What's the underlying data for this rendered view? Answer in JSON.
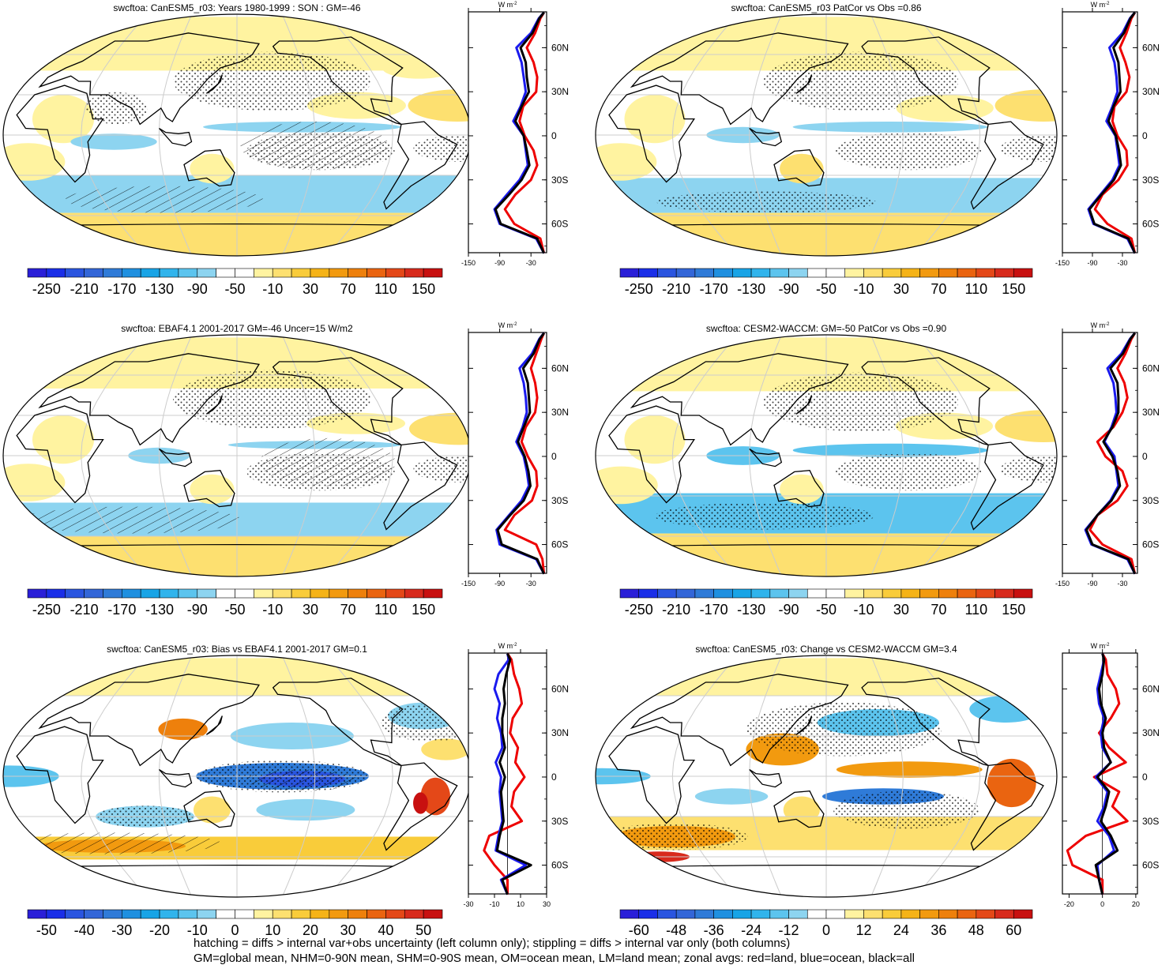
{
  "colorbar_colors": [
    "#2a1fd8",
    "#1a2ee8",
    "#2a55e0",
    "#3366d8",
    "#2f7bd8",
    "#1f90e0",
    "#18a4e6",
    "#30b4ec",
    "#5cc4ee",
    "#8dd4f0",
    "#ffffff",
    "#ffffff",
    "#fff3a0",
    "#fde070",
    "#f9cc3a",
    "#f5b317",
    "#f29a0f",
    "#ee800c",
    "#ea6410",
    "#e44818",
    "#d82a1c",
    "#c81010"
  ],
  "series_colors": {
    "land": "#ee0000",
    "ocean": "#1a1aee",
    "all": "#000000"
  },
  "footer": {
    "line1": "hatching = diffs > internal var+obs uncertainty (left column only); stippling = diffs > internal var only (both columns)",
    "line2": "GM=global mean, NHM=0-90N mean, SHM=0-90S mean, OM=ocean mean, LM=land mean; zonal avgs: red=land, blue=ocean, black=all"
  },
  "chart_data": [
    {
      "type": "map+zonal-line",
      "title": "swcftoa: CanESM5_r03: Years 1980-1999 : SON : GM=-46",
      "colorbar": {
        "labels": [
          "-250",
          "-210",
          "-170",
          "-130",
          "-90",
          "-50",
          "-10",
          "30",
          "70",
          "110",
          "150"
        ]
      },
      "zonal": {
        "units": "W m",
        "units_sup": "-2",
        "x_range": [
          -150,
          0
        ],
        "x_ticks": [
          -150,
          -90,
          -30
        ],
        "x_tick_labels": [
          "-150",
          "-90",
          "-30"
        ],
        "lat_ticks": [
          60,
          30,
          0,
          -30,
          -60
        ],
        "lat_tick_labels": [
          "60N",
          "30N",
          "0",
          "30S",
          "60S"
        ],
        "lat": [
          84,
          80,
          70,
          60,
          50,
          40,
          30,
          20,
          10,
          0,
          -10,
          -20,
          -30,
          -40,
          -50,
          -60,
          -70,
          -80
        ],
        "series": [
          {
            "name": "land",
            "values": [
              -5,
              -12,
              -22,
              -38,
              -25,
              -18,
              -20,
              -45,
              -52,
              -42,
              -25,
              -18,
              -30,
              -60,
              -80,
              -62,
              -12,
              -5
            ]
          },
          {
            "name": "ocean",
            "values": [
              -5,
              -15,
              -30,
              -58,
              -48,
              -44,
              -40,
              -50,
              -64,
              -44,
              -40,
              -36,
              -52,
              -76,
              -100,
              -90,
              -20,
              -5
            ]
          },
          {
            "name": "all",
            "values": [
              -5,
              -14,
              -27,
              -50,
              -40,
              -38,
              -34,
              -48,
              -60,
              -44,
              -38,
              -33,
              -48,
              -72,
              -98,
              -88,
              -18,
              -5
            ]
          }
        ]
      }
    },
    {
      "type": "map+zonal-line",
      "title": "swcftoa: CanESM5_r03 PatCor vs Obs =0.86",
      "colorbar": {
        "labels": [
          "-250",
          "-210",
          "-170",
          "-130",
          "-90",
          "-50",
          "-10",
          "30",
          "70",
          "110",
          "150"
        ]
      },
      "zonal": {
        "units": "W m",
        "units_sup": "-2",
        "x_range": [
          -150,
          0
        ],
        "x_ticks": [
          -150,
          -90,
          -30
        ],
        "x_tick_labels": [
          "-150",
          "-90",
          "-30"
        ],
        "lat_ticks": [
          60,
          30,
          0,
          -30,
          -60
        ],
        "lat_tick_labels": [
          "60N",
          "30N",
          "0",
          "30S",
          "60S"
        ],
        "lat": [
          84,
          80,
          70,
          60,
          50,
          40,
          30,
          20,
          10,
          0,
          -10,
          -20,
          -30,
          -40,
          -50,
          -60,
          -70,
          -80
        ],
        "series": [
          {
            "name": "land",
            "values": [
              -5,
              -12,
              -22,
              -35,
              -24,
              -16,
              -22,
              -46,
              -50,
              -40,
              -22,
              -20,
              -38,
              -70,
              -85,
              -60,
              -12,
              -5
            ]
          },
          {
            "name": "ocean",
            "values": [
              -5,
              -15,
              -30,
              -56,
              -46,
              -42,
              -40,
              -50,
              -62,
              -44,
              -40,
              -36,
              -50,
              -74,
              -98,
              -88,
              -20,
              -5
            ]
          },
          {
            "name": "all",
            "values": [
              -5,
              -14,
              -27,
              -48,
              -38,
              -36,
              -34,
              -48,
              -58,
              -43,
              -37,
              -33,
              -47,
              -72,
              -96,
              -86,
              -18,
              -5
            ]
          }
        ]
      }
    },
    {
      "type": "map+zonal-line",
      "title": "swcftoa: EBAF4.1 2001-2017 GM=-46 Uncer=15 W/m2",
      "colorbar": {
        "labels": [
          "-250",
          "-210",
          "-170",
          "-130",
          "-90",
          "-50",
          "-10",
          "30",
          "70",
          "110",
          "150"
        ]
      },
      "zonal": {
        "units": "W m",
        "units_sup": "-2",
        "x_range": [
          -150,
          0
        ],
        "x_ticks": [
          -150,
          -90,
          -30
        ],
        "x_tick_labels": [
          "-150",
          "-90",
          "-30"
        ],
        "lat_ticks": [
          60,
          30,
          0,
          -30,
          -60
        ],
        "lat_tick_labels": [
          "60N",
          "30N",
          "0",
          "30S",
          "60S"
        ],
        "lat": [
          84,
          80,
          70,
          60,
          50,
          40,
          30,
          20,
          10,
          0,
          -10,
          -20,
          -30,
          -40,
          -50,
          -60,
          -70,
          -80
        ],
        "series": [
          {
            "name": "land",
            "values": [
              -5,
              -10,
              -20,
              -30,
              -22,
              -18,
              -22,
              -40,
              -48,
              -36,
              -20,
              -18,
              -28,
              -62,
              -80,
              -20,
              -8,
              -5
            ]
          },
          {
            "name": "ocean",
            "values": [
              -5,
              -14,
              -28,
              -52,
              -44,
              -40,
              -38,
              -46,
              -58,
              -44,
              -38,
              -34,
              -48,
              -72,
              -96,
              -90,
              -20,
              -5
            ]
          },
          {
            "name": "all",
            "values": [
              -5,
              -13,
              -25,
              -45,
              -36,
              -34,
              -32,
              -44,
              -55,
              -42,
              -35,
              -31,
              -44,
              -70,
              -94,
              -86,
              -18,
              -5
            ]
          }
        ]
      }
    },
    {
      "type": "map+zonal-line",
      "title": "swcftoa: CESM2-WACCM: GM=-50 PatCor vs Obs =0.90",
      "colorbar": {
        "labels": [
          "-250",
          "-210",
          "-170",
          "-130",
          "-90",
          "-50",
          "-10",
          "30",
          "70",
          "110",
          "150"
        ]
      },
      "zonal": {
        "units": "W m",
        "units_sup": "-2",
        "x_range": [
          -150,
          0
        ],
        "x_ticks": [
          -150,
          -90,
          -30
        ],
        "x_tick_labels": [
          "-150",
          "-90",
          "-30"
        ],
        "lat_ticks": [
          60,
          30,
          0,
          -30,
          -60
        ],
        "lat_tick_labels": [
          "60N",
          "30N",
          "0",
          "30S",
          "60S"
        ],
        "lat": [
          84,
          80,
          70,
          60,
          50,
          40,
          30,
          20,
          10,
          0,
          -10,
          -20,
          -30,
          -40,
          -50,
          -60,
          -70,
          -80
        ],
        "series": [
          {
            "name": "land",
            "values": [
              -5,
              -12,
              -24,
              -40,
              -26,
              -20,
              -30,
              -48,
              -80,
              -64,
              -30,
              -20,
              -40,
              -80,
              -95,
              -70,
              -12,
              -5
            ]
          },
          {
            "name": "ocean",
            "values": [
              -5,
              -15,
              -32,
              -60,
              -48,
              -44,
              -42,
              -52,
              -66,
              -46,
              -42,
              -38,
              -54,
              -80,
              -104,
              -92,
              -20,
              -5
            ]
          },
          {
            "name": "all",
            "values": [
              -5,
              -14,
              -29,
              -54,
              -40,
              -38,
              -38,
              -50,
              -68,
              -50,
              -40,
              -35,
              -52,
              -80,
              -102,
              -90,
              -18,
              -5
            ]
          }
        ]
      }
    },
    {
      "type": "map+zonal-line",
      "title": "swcftoa: CanESM5_r03: Bias vs EBAF4.1 2001-2017  GM=0.1",
      "colorbar": {
        "labels": [
          "-50",
          "-40",
          "-30",
          "-20",
          "-10",
          "0",
          "10",
          "20",
          "30",
          "40",
          "50"
        ]
      },
      "zonal": {
        "units": "W m",
        "units_sup": "-2",
        "x_range": [
          -30,
          30
        ],
        "x_ticks": [
          -30,
          -10,
          10,
          30
        ],
        "x_tick_labels": [
          "-30",
          "-10",
          "10",
          "30"
        ],
        "zero_line": true,
        "lat_ticks": [
          60,
          30,
          0,
          -30,
          -60
        ],
        "lat_tick_labels": [
          "60N",
          "30N",
          "0",
          "30S",
          "60S"
        ],
        "lat": [
          84,
          80,
          70,
          60,
          50,
          40,
          30,
          20,
          10,
          0,
          -10,
          -20,
          -30,
          -40,
          -50,
          -60,
          -70,
          -80
        ],
        "series": [
          {
            "name": "land",
            "values": [
              0,
              3,
              5,
              9,
              11,
              4,
              2,
              8,
              6,
              13,
              5,
              3,
              11,
              -14,
              -18,
              -10,
              0,
              0
            ]
          },
          {
            "name": "ocean",
            "values": [
              0,
              1,
              -7,
              -10,
              -6,
              -8,
              -5,
              -4,
              -9,
              -5,
              -6,
              -5,
              -4,
              -7,
              -9,
              14,
              -5,
              0
            ]
          },
          {
            "name": "all",
            "values": [
              0,
              2,
              -1,
              -3,
              -2,
              -4,
              -4,
              -2,
              -6,
              -2,
              -5,
              -4,
              -3,
              -6,
              -8,
              18,
              -4,
              0
            ]
          }
        ]
      }
    },
    {
      "type": "map+zonal-line",
      "title": "swcftoa: CanESM5_r03: Change vs CESM2-WACCM GM=3.4",
      "colorbar": {
        "labels": [
          "-60",
          "-48",
          "-36",
          "-24",
          "-12",
          "0",
          "12",
          "24",
          "36",
          "48",
          "60"
        ]
      },
      "zonal": {
        "units": "W m",
        "units_sup": "-2",
        "x_range": [
          -24,
          21
        ],
        "x_ticks": [
          -20,
          0,
          20
        ],
        "x_tick_labels": [
          "-20",
          "0",
          "20"
        ],
        "zero_line": true,
        "lat_ticks": [
          60,
          30,
          0,
          -30,
          -60
        ],
        "lat_tick_labels": [
          "60N",
          "30N",
          "0",
          "30S",
          "60S"
        ],
        "lat": [
          84,
          80,
          70,
          60,
          50,
          40,
          30,
          20,
          10,
          0,
          -10,
          -20,
          -30,
          -40,
          -50,
          -60,
          -70,
          -80
        ],
        "series": [
          {
            "name": "land",
            "values": [
              0,
              2,
              3,
              8,
              10,
              5,
              -2,
              4,
              14,
              -5,
              10,
              6,
              15,
              -10,
              -21,
              -18,
              0,
              0
            ]
          },
          {
            "name": "ocean",
            "values": [
              0,
              1,
              -1,
              -3,
              -2,
              1,
              -1,
              0,
              5,
              -4,
              3,
              1,
              -3,
              4,
              7,
              -3,
              -2,
              0
            ]
          },
          {
            "name": "all",
            "values": [
              0,
              1,
              0,
              -2,
              -1,
              2,
              0,
              1,
              5,
              -3,
              4,
              2,
              -1,
              5,
              9,
              -4,
              -2,
              0
            ]
          }
        ]
      }
    }
  ]
}
